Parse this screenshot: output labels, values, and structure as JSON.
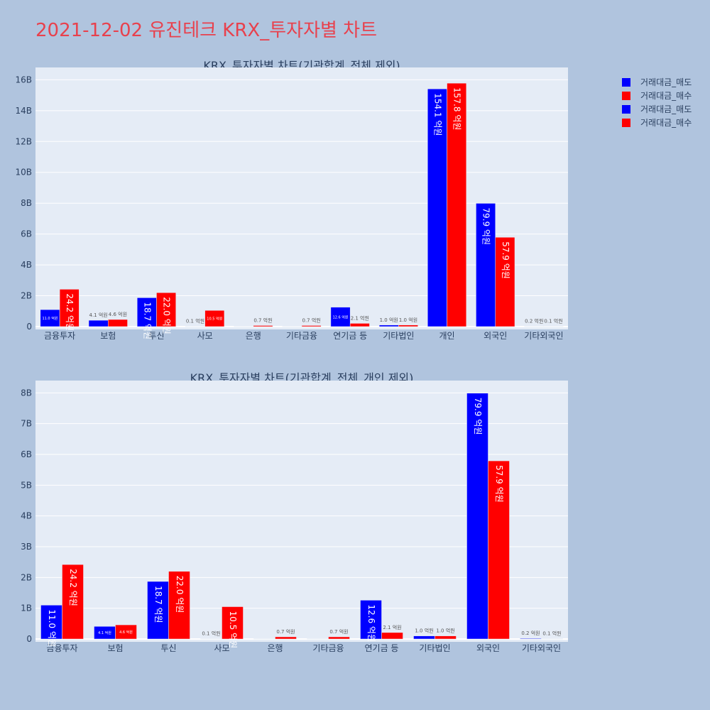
{
  "page": {
    "title": "2021-12-02 유진테크 KRX_투자자별 차트"
  },
  "legend": [
    {
      "label": "거래대금_매도",
      "color": "#0000ff"
    },
    {
      "label": "거래대금_매수",
      "color": "#ff0000"
    },
    {
      "label": "거래대금_매도",
      "color": "#0000ff"
    },
    {
      "label": "거래대금_매수",
      "color": "#ff0000"
    }
  ],
  "colors": {
    "sell": "#0000ff",
    "buy": "#ff0000",
    "plot_bg": "#e5ecf6",
    "tick": "#2a3f5f",
    "label_outside": "#555555"
  },
  "chart_data": [
    {
      "type": "bar",
      "title": "KRX_투자자별 차트(기관합계_전체 제외)",
      "categories": [
        "금융투자",
        "보험",
        "투신",
        "사모",
        "은행",
        "기타금융",
        "연기금 등",
        "기타법인",
        "개인",
        "외국인",
        "기타외국인"
      ],
      "series": [
        {
          "name": "거래대금_매도",
          "values": [
            1.1,
            0.41,
            1.87,
            0.01,
            0.0,
            0.0,
            1.26,
            0.1,
            15.41,
            7.99,
            0.02
          ],
          "labels": [
            "11.0 억원",
            "4.1 억원",
            "18.7 억원",
            "0.1 억원",
            "",
            "",
            "12.6 억원",
            "1.0 억원",
            "154.1 억원",
            "79.9 억원",
            "0.2 억원"
          ]
        },
        {
          "name": "거래대금_매수",
          "values": [
            2.42,
            0.46,
            2.2,
            1.05,
            0.07,
            0.07,
            0.21,
            0.1,
            15.78,
            5.79,
            0.01
          ],
          "labels": [
            "24.2 억원",
            "4.6 억원",
            "22.0 억원",
            "10.5 억원",
            "0.7 억원",
            "0.7 억원",
            "2.1 억원",
            "1.0 억원",
            "157.8 억원",
            "57.9 억원",
            "0.1 억원"
          ]
        }
      ],
      "yticks": [
        "0",
        "2B",
        "4B",
        "6B",
        "8B",
        "10B",
        "12B",
        "14B",
        "16B"
      ],
      "ylim": [
        0,
        16.8
      ],
      "ytick_step": 2
    },
    {
      "type": "bar",
      "title": "KRX_투자자별 차트(기관합계_전체_개인 제외)",
      "categories": [
        "금융투자",
        "보험",
        "투신",
        "사모",
        "은행",
        "기타금융",
        "연기금 등",
        "기타법인",
        "외국인",
        "기타외국인"
      ],
      "series": [
        {
          "name": "거래대금_매도",
          "values": [
            1.1,
            0.41,
            1.87,
            0.01,
            0.0,
            0.0,
            1.26,
            0.1,
            7.99,
            0.02
          ],
          "labels": [
            "11.0 억원",
            "4.1 억원",
            "18.7 억원",
            "0.1 억원",
            "",
            "",
            "12.6 억원",
            "1.0 억원",
            "79.9 억원",
            "0.2 억원"
          ]
        },
        {
          "name": "거래대금_매수",
          "values": [
            2.42,
            0.46,
            2.2,
            1.05,
            0.07,
            0.07,
            0.21,
            0.1,
            5.79,
            0.01
          ],
          "labels": [
            "24.2 억원",
            "4.6 억원",
            "22.0 억원",
            "10.5 억원",
            "0.7 억원",
            "0.7 억원",
            "2.1 억원",
            "1.0 억원",
            "57.9 억원",
            "0.1 억원"
          ]
        }
      ],
      "yticks": [
        "0",
        "1B",
        "2B",
        "3B",
        "4B",
        "5B",
        "6B",
        "7B",
        "8B"
      ],
      "ylim": [
        0,
        8.4
      ],
      "ytick_step": 1
    }
  ]
}
